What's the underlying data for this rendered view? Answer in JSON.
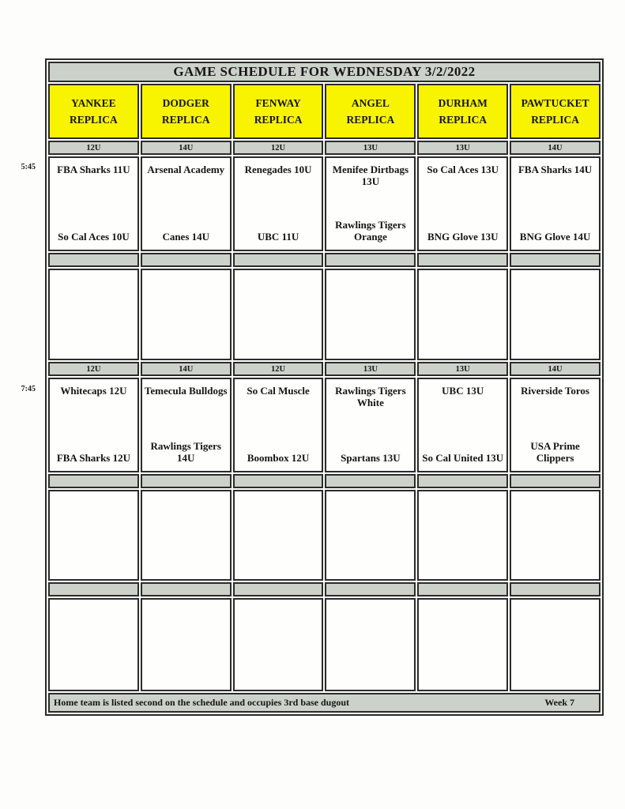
{
  "page": {
    "title": "GAME SCHEDULE FOR WEDNESDAY 3/2/2022",
    "footer_note": "Home team is listed second on the schedule and occupies 3rd base dugout",
    "week_label": "Week 7"
  },
  "times": {
    "slot1": "5:45",
    "slot2": "7:45"
  },
  "colors": {
    "header_yellow": "#f8f400",
    "band_gray": "#ccd1ca",
    "border_dark": "#2b2b2b"
  },
  "columns": [
    {
      "name_line1": "YANKEE",
      "name_line2": "REPLICA",
      "division1": "12U",
      "slot1_away": "FBA Sharks 11U",
      "slot1_home": "So Cal Aces 10U",
      "division2": "12U",
      "slot2_away": "Whitecaps 12U",
      "slot2_home": "FBA Sharks 12U"
    },
    {
      "name_line1": "DODGER",
      "name_line2": "REPLICA",
      "division1": "14U",
      "slot1_away": "Arsenal Academy",
      "slot1_home": "Canes 14U",
      "division2": "14U",
      "slot2_away": "Temecula Bulldogs",
      "slot2_home": "Rawlings Tigers 14U"
    },
    {
      "name_line1": "FENWAY",
      "name_line2": "REPLICA",
      "division1": "12U",
      "slot1_away": "Renegades 10U",
      "slot1_home": "UBC 11U",
      "division2": "12U",
      "slot2_away": "So Cal Muscle",
      "slot2_home": "Boombox 12U"
    },
    {
      "name_line1": "ANGEL",
      "name_line2": "REPLICA",
      "division1": "13U",
      "slot1_away": "Menifee Dirtbags 13U",
      "slot1_home": "Rawlings Tigers Orange",
      "division2": "13U",
      "slot2_away": "Rawlings Tigers White",
      "slot2_home": "Spartans 13U"
    },
    {
      "name_line1": "DURHAM",
      "name_line2": "REPLICA",
      "division1": "13U",
      "slot1_away": "So Cal Aces 13U",
      "slot1_home": "BNG Glove 13U",
      "division2": "13U",
      "slot2_away": "UBC 13U",
      "slot2_home": "So Cal United 13U"
    },
    {
      "name_line1": "PAWTUCKET",
      "name_line2": "REPLICA",
      "division1": "14U",
      "slot1_away": "FBA Sharks 14U",
      "slot1_home": "BNG Glove 14U",
      "division2": "14U",
      "slot2_away": "Riverside Toros",
      "slot2_home": "USA Prime Clippers"
    }
  ]
}
